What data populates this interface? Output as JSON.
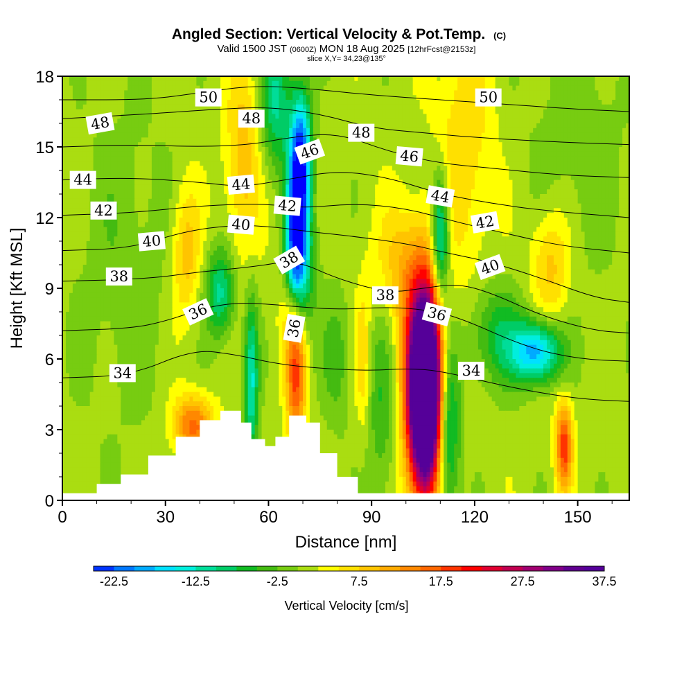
{
  "title": {
    "main": "Angled Section: Vertical Velocity & Pot.Temp.",
    "main_unit": "(C)",
    "valid_prefix": "Valid 1500 JST",
    "valid_utc": "(0600Z)",
    "valid_date": "MON 18 Aug 2025",
    "forecast": "[12hrFcst@2153z]",
    "slice": "slice X,Y= 34,23@135°"
  },
  "chart_data": {
    "type": "heatmap",
    "title": "Angled Section: Vertical Velocity & Pot.Temp.",
    "xlabel": "Distance [nm]",
    "ylabel": "Height [Kft MSL]",
    "xlim": [
      0,
      165
    ],
    "ylim": [
      0,
      18
    ],
    "x_ticks": [
      "0",
      "30",
      "60",
      "90",
      "120",
      "150"
    ],
    "x_tick_values": [
      0,
      30,
      60,
      90,
      120,
      150
    ],
    "y_ticks": [
      "0",
      "3",
      "6",
      "9",
      "12",
      "15",
      "18"
    ],
    "y_tick_values": [
      0,
      3,
      6,
      9,
      12,
      15,
      18
    ],
    "colorbar": {
      "label": "Vertical Velocity [cm/s]",
      "labels": [
        "-22.5",
        "-12.5",
        "-2.5",
        "7.5",
        "17.5",
        "27.5",
        "37.5"
      ],
      "label_values": [
        -22.5,
        -12.5,
        -2.5,
        7.5,
        17.5,
        27.5,
        37.5
      ],
      "min": -25,
      "max": 40,
      "step": 2.5,
      "colors": [
        "#0000ff",
        "#0033ff",
        "#0077ff",
        "#00aaff",
        "#00e0ff",
        "#00eedd",
        "#00dd99",
        "#00cc66",
        "#11bb22",
        "#44bb11",
        "#77cc11",
        "#aadd11",
        "#ffff00",
        "#ffe000",
        "#ffc400",
        "#ffaa00",
        "#ff8800",
        "#ff6600",
        "#ff3300",
        "#ff0000",
        "#e00030",
        "#c00050",
        "#a00070",
        "#800088",
        "#600090",
        "#550099"
      ]
    },
    "terrain": [
      {
        "x": 0,
        "y": 0.3
      },
      {
        "x": 10,
        "y": 0.7
      },
      {
        "x": 17,
        "y": 1.1
      },
      {
        "x": 25,
        "y": 1.9
      },
      {
        "x": 33,
        "y": 2.7
      },
      {
        "x": 40,
        "y": 3.4
      },
      {
        "x": 46,
        "y": 3.8
      },
      {
        "x": 52,
        "y": 3.3
      },
      {
        "x": 55,
        "y": 2.6
      },
      {
        "x": 59,
        "y": 2.3
      },
      {
        "x": 62,
        "y": 2.7
      },
      {
        "x": 66,
        "y": 3.6
      },
      {
        "x": 71,
        "y": 3.3
      },
      {
        "x": 75,
        "y": 2.0
      },
      {
        "x": 80,
        "y": 1.0
      },
      {
        "x": 86,
        "y": 0.3
      },
      {
        "x": 165,
        "y": 0
      }
    ],
    "features": [
      {
        "x": 105.5,
        "y": 4.5,
        "value": 38,
        "sx": 3,
        "sy": 2.4
      },
      {
        "x": 105.5,
        "y": 4.0,
        "value": 25,
        "sx": 3.8,
        "sy": 3.5
      },
      {
        "x": 106,
        "y": 6.5,
        "value": 12,
        "sx": 5,
        "sy": 2.5
      },
      {
        "x": 68,
        "y": 5.5,
        "value": 18,
        "sx": 2,
        "sy": 2.2
      },
      {
        "x": 67.5,
        "y": 8.2,
        "value": 10,
        "sx": 3,
        "sy": 1.6
      },
      {
        "x": 38,
        "y": 3.2,
        "value": 15,
        "sx": 4,
        "sy": 0.9
      },
      {
        "x": 146,
        "y": 2.3,
        "value": 18,
        "sx": 1.7,
        "sy": 1.3
      },
      {
        "x": 142,
        "y": 10,
        "value": 8,
        "sx": 4,
        "sy": 1.8
      },
      {
        "x": 36,
        "y": 10.5,
        "value": 8,
        "sx": 3,
        "sy": 2
      },
      {
        "x": 52.5,
        "y": 14.5,
        "value": 8,
        "sx": 3.5,
        "sy": 3
      },
      {
        "x": 87.5,
        "y": 6,
        "value": 6,
        "sx": 1.5,
        "sy": 2
      },
      {
        "x": 99,
        "y": 10,
        "value": 7,
        "sx": 6,
        "sy": 1.8
      },
      {
        "x": 117,
        "y": 15,
        "value": 6,
        "sx": 6,
        "sy": 4
      },
      {
        "x": 68,
        "y": 12,
        "value": -22,
        "sx": 2,
        "sy": 3
      },
      {
        "x": 70,
        "y": 14.5,
        "value": -18,
        "sx": 2,
        "sy": 2
      },
      {
        "x": 69,
        "y": 9.5,
        "value": -16,
        "sx": 3,
        "sy": 2
      },
      {
        "x": 110,
        "y": 11,
        "value": -18,
        "sx": 1.8,
        "sy": 2
      },
      {
        "x": 112,
        "y": 3.5,
        "value": -16,
        "sx": 2.5,
        "sy": 3
      },
      {
        "x": 138,
        "y": 6.3,
        "value": -20,
        "sx": 5,
        "sy": 0.9
      },
      {
        "x": 55,
        "y": 5,
        "value": -14,
        "sx": 1.4,
        "sy": 2.5
      },
      {
        "x": 46,
        "y": 8.8,
        "value": -12,
        "sx": 3,
        "sy": 1.3
      },
      {
        "x": 62,
        "y": 17,
        "value": -12,
        "sx": 3,
        "sy": 2
      },
      {
        "x": 93,
        "y": 4,
        "value": -6,
        "sx": 3,
        "sy": 3
      },
      {
        "x": 126,
        "y": 7,
        "value": -8,
        "sx": 6,
        "sy": 1.5
      },
      {
        "x": 18,
        "y": 10,
        "value": -3,
        "sx": 10,
        "sy": 5
      },
      {
        "x": 150,
        "y": 15,
        "value": -3,
        "sx": 10,
        "sy": 4
      },
      {
        "x": 80,
        "y": 6,
        "value": -5,
        "sx": 3,
        "sy": 2
      }
    ],
    "isentropes": [
      {
        "value": 34,
        "label": "34",
        "points": [
          [
            0,
            5.2
          ],
          [
            20,
            5.3
          ],
          [
            38,
            6.4
          ],
          [
            50,
            6.2
          ],
          [
            62,
            5.8
          ],
          [
            75,
            5.6
          ],
          [
            90,
            5.5
          ],
          [
            100,
            5.6
          ],
          [
            110,
            5.5
          ],
          [
            130,
            4.8
          ],
          [
            150,
            4.3
          ],
          [
            165,
            4.2
          ]
        ]
      },
      {
        "value": 36,
        "label": "36",
        "points": [
          [
            0,
            7.2
          ],
          [
            20,
            7.3
          ],
          [
            30,
            7.6
          ],
          [
            42,
            8.2
          ],
          [
            52,
            8.4
          ],
          [
            62,
            8.3
          ],
          [
            70,
            8.2
          ],
          [
            80,
            8.1
          ],
          [
            95,
            8.2
          ],
          [
            105,
            8.1
          ],
          [
            115,
            7.8
          ],
          [
            135,
            6.5
          ],
          [
            150,
            6.0
          ],
          [
            165,
            5.9
          ]
        ]
      },
      {
        "value": 38,
        "label": "38",
        "points": [
          [
            0,
            9.3
          ],
          [
            25,
            9.4
          ],
          [
            40,
            9.7
          ],
          [
            55,
            9.9
          ],
          [
            68,
            10.2
          ],
          [
            80,
            9.4
          ],
          [
            95,
            8.8
          ],
          [
            105,
            9.0
          ],
          [
            115,
            9.2
          ],
          [
            125,
            8.8
          ],
          [
            140,
            7.8
          ],
          [
            155,
            7.2
          ],
          [
            165,
            7.1
          ]
        ]
      },
      {
        "value": 40,
        "label": "40",
        "points": [
          [
            0,
            10.6
          ],
          [
            20,
            10.7
          ],
          [
            35,
            11.4
          ],
          [
            50,
            11.7
          ],
          [
            62,
            11.6
          ],
          [
            72,
            11.4
          ],
          [
            85,
            11.2
          ],
          [
            100,
            10.9
          ],
          [
            112,
            10.5
          ],
          [
            125,
            10.1
          ],
          [
            140,
            9.4
          ],
          [
            155,
            8.6
          ],
          [
            165,
            8.4
          ]
        ]
      },
      {
        "value": 42,
        "label": "42",
        "points": [
          [
            0,
            12.1
          ],
          [
            20,
            12.2
          ],
          [
            40,
            12.5
          ],
          [
            58,
            12.6
          ],
          [
            70,
            12.4
          ],
          [
            85,
            12.6
          ],
          [
            100,
            12.4
          ],
          [
            115,
            11.8
          ],
          [
            130,
            11.3
          ],
          [
            145,
            10.8
          ],
          [
            165,
            10.5
          ]
        ]
      },
      {
        "value": 44,
        "label": "44",
        "points": [
          [
            0,
            13.6
          ],
          [
            20,
            13.7
          ],
          [
            40,
            13.5
          ],
          [
            52,
            13.3
          ],
          [
            65,
            13.6
          ],
          [
            80,
            14.0
          ],
          [
            95,
            13.7
          ],
          [
            110,
            13.0
          ],
          [
            125,
            12.6
          ],
          [
            140,
            12.3
          ],
          [
            165,
            12.0
          ]
        ]
      },
      {
        "value": 46,
        "label": "46",
        "points": [
          [
            0,
            15.0
          ],
          [
            20,
            15.1
          ],
          [
            40,
            15.0
          ],
          [
            55,
            15.1
          ],
          [
            66,
            15.4
          ],
          [
            80,
            15.6
          ],
          [
            95,
            14.8
          ],
          [
            110,
            14.3
          ],
          [
            125,
            14.1
          ],
          [
            145,
            13.8
          ],
          [
            165,
            13.7
          ]
        ]
      },
      {
        "value": 48,
        "label": "48",
        "points": [
          [
            0,
            16.2
          ],
          [
            25,
            16.4
          ],
          [
            45,
            16.6
          ],
          [
            60,
            16.7
          ],
          [
            75,
            16.4
          ],
          [
            90,
            15.8
          ],
          [
            105,
            15.6
          ],
          [
            120,
            15.4
          ],
          [
            145,
            15.2
          ],
          [
            165,
            15.1
          ]
        ]
      },
      {
        "value": 50,
        "label": "50",
        "points": [
          [
            0,
            17.0
          ],
          [
            25,
            17.0
          ],
          [
            40,
            17.3
          ],
          [
            55,
            17.6
          ],
          [
            70,
            17.5
          ],
          [
            90,
            17.2
          ],
          [
            110,
            17.0
          ],
          [
            130,
            16.8
          ],
          [
            150,
            16.6
          ],
          [
            165,
            16.5
          ]
        ]
      }
    ],
    "contour_labels": [
      {
        "label": "34",
        "x": 17.5,
        "y": 5.4,
        "angle": 0
      },
      {
        "label": "34",
        "x": 119,
        "y": 5.5,
        "angle": 0
      },
      {
        "label": "36",
        "x": 39.5,
        "y": 8.0,
        "angle": -25
      },
      {
        "label": "36",
        "x": 67.5,
        "y": 7.3,
        "angle": -80
      },
      {
        "label": "36",
        "x": 109,
        "y": 7.9,
        "angle": 15
      },
      {
        "label": "38",
        "x": 16.5,
        "y": 9.5,
        "angle": 0
      },
      {
        "label": "38",
        "x": 66,
        "y": 10.2,
        "angle": -30
      },
      {
        "label": "38",
        "x": 94,
        "y": 8.7,
        "angle": 0
      },
      {
        "label": "40",
        "x": 26,
        "y": 11.0,
        "angle": -5
      },
      {
        "label": "40",
        "x": 52,
        "y": 11.7,
        "angle": 5
      },
      {
        "label": "40",
        "x": 124.5,
        "y": 9.9,
        "angle": -20
      },
      {
        "label": "42",
        "x": 12,
        "y": 12.3,
        "angle": 0
      },
      {
        "label": "42",
        "x": 65.5,
        "y": 12.5,
        "angle": 5
      },
      {
        "label": "42",
        "x": 123,
        "y": 11.8,
        "angle": -10
      },
      {
        "label": "44",
        "x": 6,
        "y": 13.6,
        "angle": 0
      },
      {
        "label": "44",
        "x": 52,
        "y": 13.4,
        "angle": -5
      },
      {
        "label": "44",
        "x": 110,
        "y": 12.9,
        "angle": 10
      },
      {
        "label": "46",
        "x": 72,
        "y": 14.8,
        "angle": -20
      },
      {
        "label": "46",
        "x": 101,
        "y": 14.6,
        "angle": 5
      },
      {
        "label": "48",
        "x": 11,
        "y": 16.0,
        "angle": -10
      },
      {
        "label": "48",
        "x": 55,
        "y": 16.2,
        "angle": 0
      },
      {
        "label": "48",
        "x": 87,
        "y": 15.6,
        "angle": 0
      },
      {
        "label": "50",
        "x": 42.5,
        "y": 17.1,
        "angle": 0
      },
      {
        "label": "50",
        "x": 124,
        "y": 17.1,
        "angle": 0
      }
    ]
  }
}
